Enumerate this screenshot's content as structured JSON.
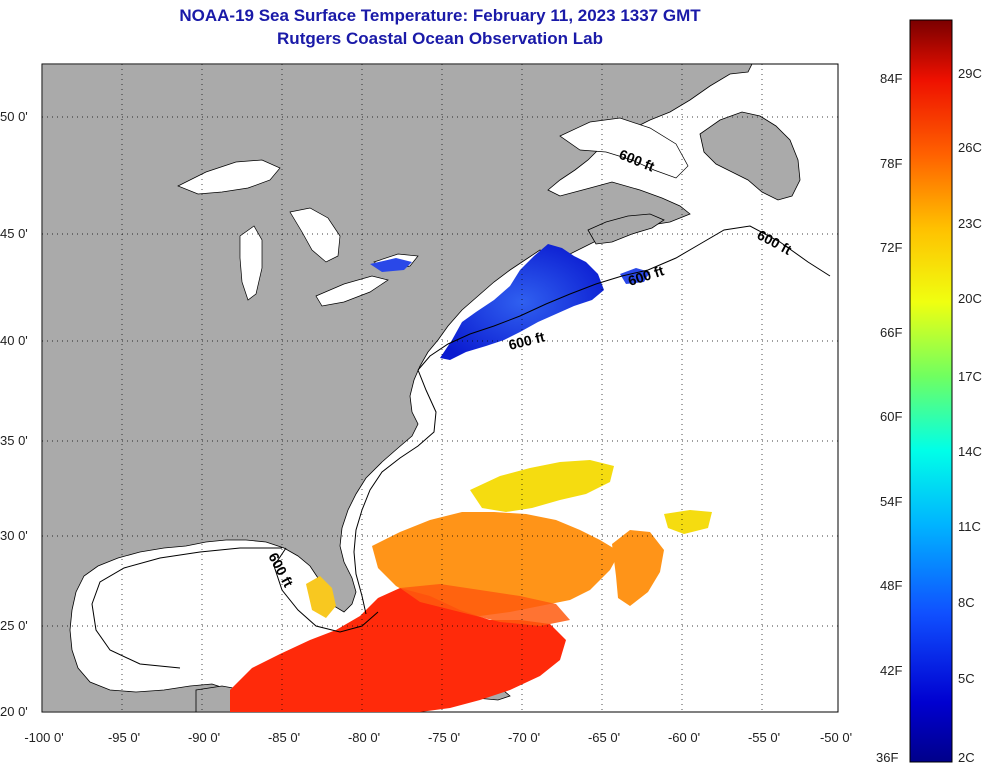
{
  "title": {
    "line1": "NOAA-19 Sea Surface Temperature:  February 11, 2023 1337 GMT",
    "line2": "Rutgers Coastal Ocean Observation Lab"
  },
  "axes": {
    "lat_labels": [
      "50 0'",
      "45 0'",
      "40 0'",
      "35 0'",
      "30 0'",
      "25 0'",
      "20 0'"
    ],
    "lon_labels": [
      "-100 0'",
      "-95 0'",
      "-90 0'",
      "-85 0'",
      "-80 0'",
      "-75 0'",
      "-70 0'",
      "-65 0'",
      "-60 0'",
      "-55 0'",
      "-50 0'"
    ]
  },
  "isobath_label": "600 ft",
  "colorbar": {
    "fahrenheit": [
      "84F",
      "78F",
      "72F",
      "66F",
      "60F",
      "54F",
      "48F",
      "42F",
      "36F"
    ],
    "celsius": [
      "29C",
      "26C",
      "23C",
      "20C",
      "17C",
      "14C",
      "11C",
      "8C",
      "5C",
      "2C"
    ]
  },
  "colors": {
    "land": "#aaaaaa",
    "title": "#1a1aa8",
    "cold": "#1e40d8",
    "warm": "#ff1a00",
    "mid_warm": "#ff8c14",
    "yellow": "#f5dc10"
  }
}
